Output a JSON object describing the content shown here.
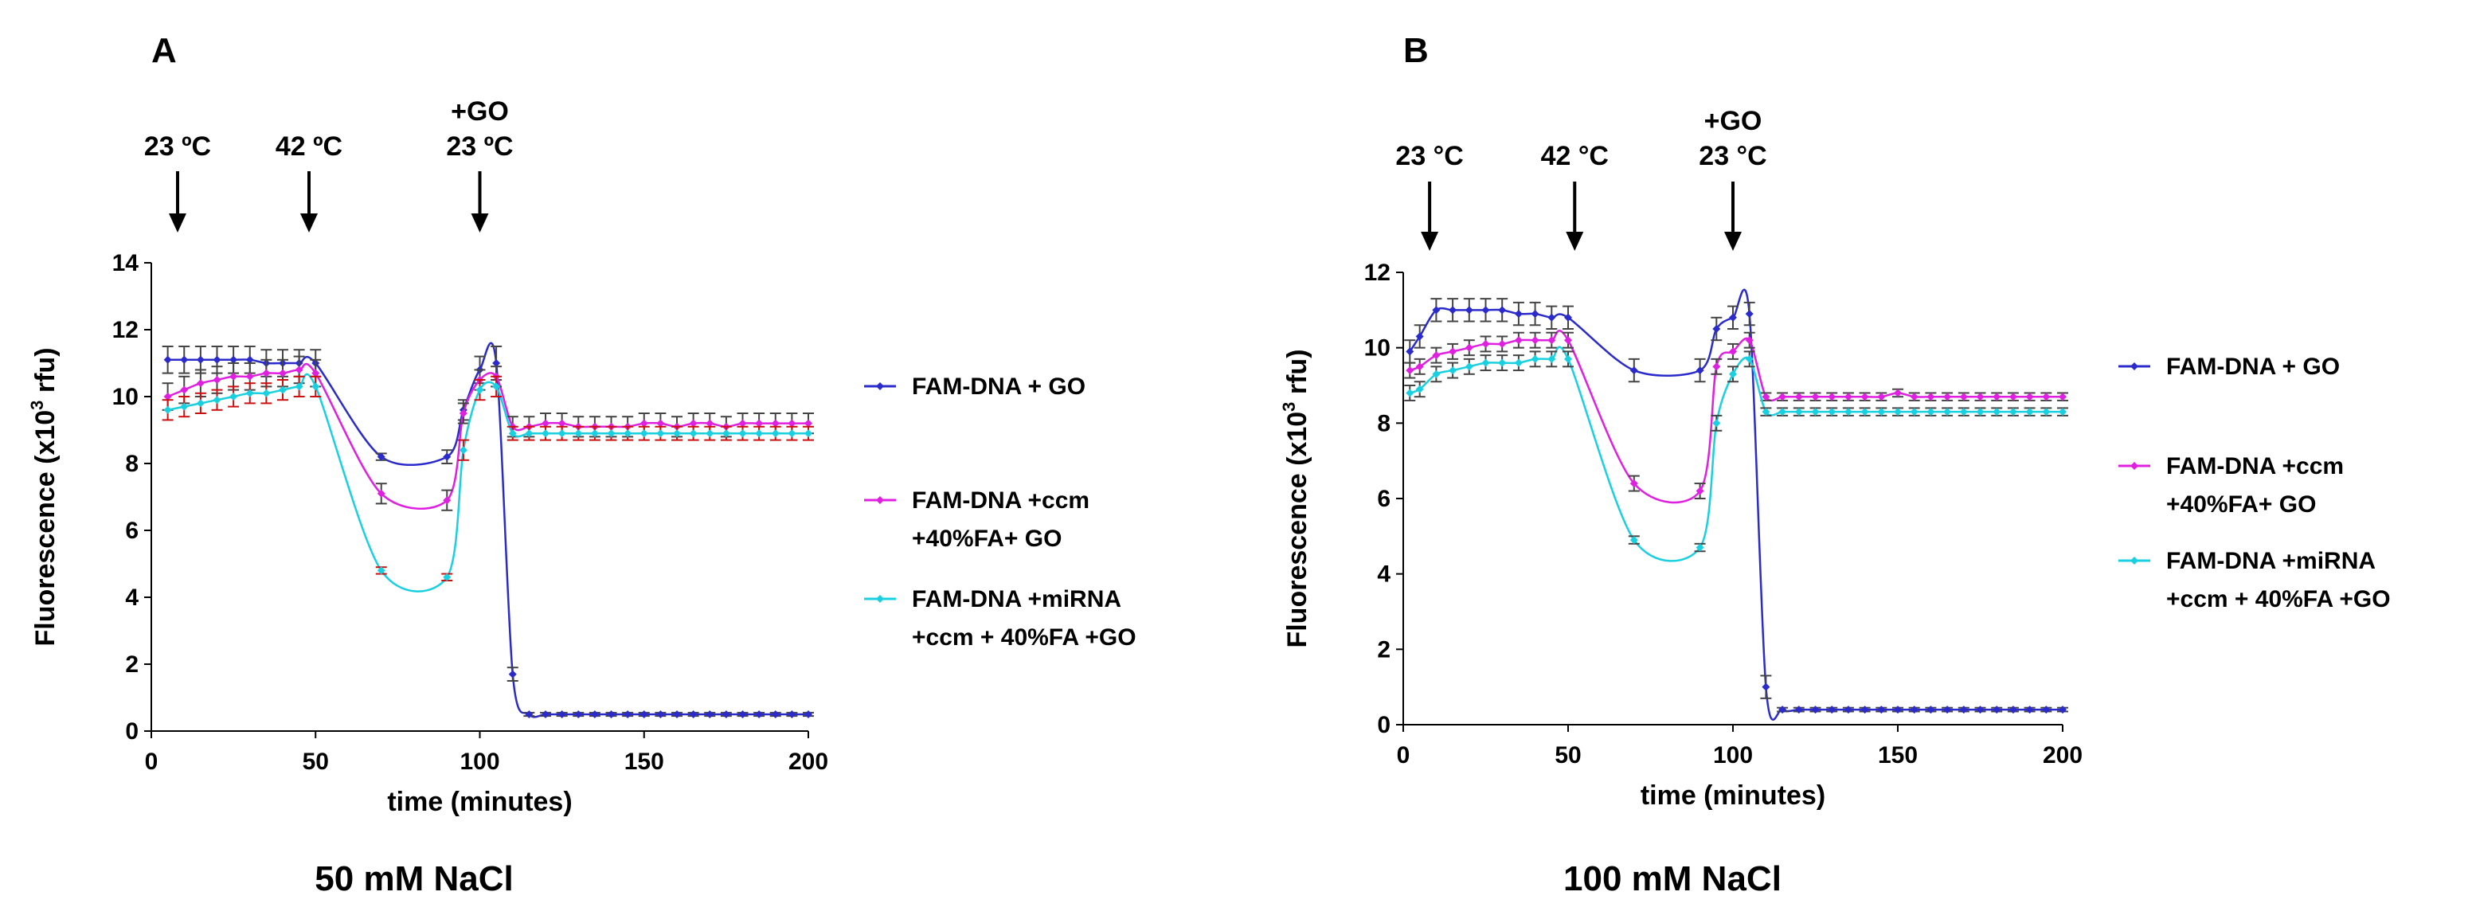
{
  "figure": {
    "panels": [
      {
        "letter": "A",
        "condition": "50 mM NaCl",
        "arrows": [
          {
            "x": 8,
            "lines": [
              "23 ºC"
            ]
          },
          {
            "x": 48,
            "lines": [
              "42 ºC"
            ]
          },
          {
            "x": 100,
            "lines": [
              "+GO",
              "23 ºC"
            ]
          }
        ]
      },
      {
        "letter": "B",
        "condition": "100 mM NaCl",
        "arrows": [
          {
            "x": 8,
            "lines": [
              "23 °C"
            ]
          },
          {
            "x": 52,
            "lines": [
              "42 °C"
            ]
          },
          {
            "x": 100,
            "lines": [
              "+GO",
              "23 °C"
            ]
          }
        ]
      }
    ]
  },
  "chart_data": [
    {
      "type": "line",
      "panel": "A",
      "xlabel": "time (minutes)",
      "ylabel": "Fluorescence (x10",
      "ylabel_sup": "3",
      "ylabel_end": " rfu)",
      "xlim": [
        0,
        200
      ],
      "ylim": [
        0,
        14
      ],
      "xticks": [
        0,
        50,
        100,
        150,
        200
      ],
      "yticks": [
        0,
        2,
        4,
        6,
        8,
        10,
        12,
        14
      ],
      "legend_position": "right",
      "series": [
        {
          "name": "FAM-DNA + GO",
          "legend_lines": [
            "FAM-DNA + GO"
          ],
          "color": "#2b2bcc",
          "error_color": "#444444",
          "x": [
            5,
            10,
            15,
            20,
            25,
            30,
            35,
            40,
            45,
            50,
            70,
            90,
            95,
            100,
            105,
            110,
            115,
            120,
            125,
            130,
            135,
            140,
            145,
            150,
            155,
            160,
            165,
            170,
            175,
            180,
            185,
            190,
            195,
            200
          ],
          "y": [
            11.1,
            11.1,
            11.1,
            11.1,
            11.1,
            11.1,
            11.0,
            11.0,
            11.0,
            11.0,
            8.2,
            8.2,
            9.6,
            10.8,
            11.0,
            1.7,
            0.5,
            0.5,
            0.5,
            0.5,
            0.5,
            0.5,
            0.5,
            0.5,
            0.5,
            0.5,
            0.5,
            0.5,
            0.5,
            0.5,
            0.5,
            0.5,
            0.5,
            0.5
          ],
          "err": [
            0.4,
            0.4,
            0.4,
            0.4,
            0.4,
            0.4,
            0.4,
            0.4,
            0.4,
            0.4,
            0.1,
            0.2,
            0.3,
            0.4,
            0.5,
            0.2,
            0.05,
            0.05,
            0.05,
            0.05,
            0.05,
            0.05,
            0.05,
            0.05,
            0.05,
            0.05,
            0.05,
            0.05,
            0.05,
            0.05,
            0.05,
            0.05,
            0.05,
            0.05
          ]
        },
        {
          "name": "FAM-DNA +ccm +40%FA+ GO",
          "legend_lines": [
            "FAM-DNA +ccm",
            "+40%FA+ GO"
          ],
          "color": "#e020e0",
          "error_color": "#444444",
          "x": [
            5,
            10,
            15,
            20,
            25,
            30,
            35,
            40,
            45,
            50,
            70,
            90,
            95,
            100,
            105,
            110,
            115,
            120,
            125,
            130,
            135,
            140,
            145,
            150,
            155,
            160,
            165,
            170,
            175,
            180,
            185,
            190,
            195,
            200
          ],
          "y": [
            10.0,
            10.2,
            10.4,
            10.5,
            10.6,
            10.6,
            10.7,
            10.7,
            10.8,
            10.7,
            7.1,
            6.9,
            9.5,
            10.5,
            10.6,
            9.1,
            9.1,
            9.2,
            9.2,
            9.1,
            9.1,
            9.1,
            9.1,
            9.2,
            9.2,
            9.1,
            9.2,
            9.2,
            9.1,
            9.2,
            9.2,
            9.2,
            9.2,
            9.2
          ],
          "err": [
            0.4,
            0.4,
            0.4,
            0.4,
            0.4,
            0.4,
            0.4,
            0.4,
            0.4,
            0.4,
            0.3,
            0.3,
            0.3,
            0.3,
            0.3,
            0.3,
            0.3,
            0.3,
            0.3,
            0.3,
            0.3,
            0.3,
            0.3,
            0.3,
            0.3,
            0.3,
            0.3,
            0.3,
            0.3,
            0.3,
            0.3,
            0.3,
            0.3,
            0.3
          ]
        },
        {
          "name": "FAM-DNA +miRNA +ccm + 40%FA +GO",
          "legend_lines": [
            "FAM-DNA +miRNA",
            "+ccm + 40%FA +GO"
          ],
          "color": "#18d0e0",
          "error_color": "#cc1010",
          "x": [
            5,
            10,
            15,
            20,
            25,
            30,
            35,
            40,
            45,
            50,
            70,
            90,
            95,
            100,
            105,
            110,
            115,
            120,
            125,
            130,
            135,
            140,
            145,
            150,
            155,
            160,
            165,
            170,
            175,
            180,
            185,
            190,
            195,
            200
          ],
          "y": [
            9.6,
            9.7,
            9.8,
            9.9,
            10.0,
            10.1,
            10.1,
            10.2,
            10.3,
            10.3,
            4.8,
            4.6,
            8.4,
            10.2,
            10.3,
            8.9,
            8.9,
            8.9,
            8.9,
            8.9,
            8.9,
            8.9,
            8.9,
            8.9,
            8.9,
            8.9,
            8.9,
            8.9,
            8.9,
            8.9,
            8.9,
            8.9,
            8.9,
            8.9
          ],
          "err": [
            0.3,
            0.3,
            0.3,
            0.3,
            0.3,
            0.3,
            0.3,
            0.3,
            0.3,
            0.3,
            0.1,
            0.1,
            0.3,
            0.3,
            0.3,
            0.2,
            0.2,
            0.2,
            0.2,
            0.2,
            0.2,
            0.2,
            0.2,
            0.2,
            0.2,
            0.2,
            0.2,
            0.2,
            0.2,
            0.2,
            0.2,
            0.2,
            0.2,
            0.2
          ]
        }
      ]
    },
    {
      "type": "line",
      "panel": "B",
      "xlabel": "time (minutes)",
      "ylabel": "Fluorescence (x10",
      "ylabel_sup": "3",
      "ylabel_end": " rfu)",
      "xlim": [
        0,
        200
      ],
      "ylim": [
        0,
        12
      ],
      "xticks": [
        0,
        50,
        100,
        150,
        200
      ],
      "yticks": [
        0,
        2,
        4,
        6,
        8,
        10,
        12
      ],
      "legend_position": "right",
      "series": [
        {
          "name": "FAM-DNA + GO",
          "legend_lines": [
            "FAM-DNA + GO"
          ],
          "color": "#2b2bcc",
          "error_color": "#444444",
          "x": [
            2,
            5,
            10,
            15,
            20,
            25,
            30,
            35,
            40,
            45,
            50,
            70,
            90,
            95,
            100,
            105,
            110,
            115,
            120,
            125,
            130,
            135,
            140,
            145,
            150,
            155,
            160,
            165,
            170,
            175,
            180,
            185,
            190,
            195,
            200
          ],
          "y": [
            9.9,
            10.3,
            11.0,
            11.0,
            11.0,
            11.0,
            11.0,
            10.9,
            10.9,
            10.8,
            10.8,
            9.4,
            9.4,
            10.5,
            10.8,
            10.9,
            1.0,
            0.4,
            0.4,
            0.4,
            0.4,
            0.4,
            0.4,
            0.4,
            0.4,
            0.4,
            0.4,
            0.4,
            0.4,
            0.4,
            0.4,
            0.4,
            0.4,
            0.4,
            0.4
          ],
          "err": [
            0.3,
            0.3,
            0.3,
            0.3,
            0.3,
            0.3,
            0.3,
            0.3,
            0.3,
            0.3,
            0.3,
            0.3,
            0.3,
            0.3,
            0.3,
            0.3,
            0.3,
            0.05,
            0.05,
            0.05,
            0.05,
            0.05,
            0.05,
            0.05,
            0.05,
            0.05,
            0.05,
            0.05,
            0.05,
            0.05,
            0.05,
            0.05,
            0.05,
            0.05,
            0.05
          ]
        },
        {
          "name": "FAM-DNA +ccm +40%FA+ GO",
          "legend_lines": [
            "FAM-DNA +ccm",
            "+40%FA+ GO"
          ],
          "color": "#e020e0",
          "error_color": "#444444",
          "x": [
            2,
            5,
            10,
            15,
            20,
            25,
            30,
            35,
            40,
            45,
            50,
            70,
            90,
            95,
            100,
            105,
            110,
            115,
            120,
            125,
            130,
            135,
            140,
            145,
            150,
            155,
            160,
            165,
            170,
            175,
            180,
            185,
            190,
            195,
            200
          ],
          "y": [
            9.4,
            9.5,
            9.8,
            9.9,
            10.0,
            10.1,
            10.1,
            10.2,
            10.2,
            10.2,
            10.2,
            6.4,
            6.2,
            9.5,
            9.9,
            10.2,
            8.7,
            8.7,
            8.7,
            8.7,
            8.7,
            8.7,
            8.7,
            8.7,
            8.8,
            8.7,
            8.7,
            8.7,
            8.7,
            8.7,
            8.7,
            8.7,
            8.7,
            8.7,
            8.7
          ],
          "err": [
            0.2,
            0.2,
            0.2,
            0.2,
            0.2,
            0.2,
            0.2,
            0.2,
            0.2,
            0.2,
            0.2,
            0.2,
            0.2,
            0.2,
            0.2,
            0.2,
            0.1,
            0.1,
            0.1,
            0.1,
            0.1,
            0.1,
            0.1,
            0.1,
            0.1,
            0.1,
            0.1,
            0.1,
            0.1,
            0.1,
            0.1,
            0.1,
            0.1,
            0.1,
            0.1
          ]
        },
        {
          "name": "FAM-DNA +miRNA +ccm + 40%FA +GO",
          "legend_lines": [
            "FAM-DNA +miRNA",
            "+ccm + 40%FA +GO"
          ],
          "color": "#18d0e0",
          "error_color": "#444444",
          "x": [
            2,
            5,
            10,
            15,
            20,
            25,
            30,
            35,
            40,
            45,
            50,
            70,
            90,
            95,
            100,
            105,
            110,
            115,
            120,
            125,
            130,
            135,
            140,
            145,
            150,
            155,
            160,
            165,
            170,
            175,
            180,
            185,
            190,
            195,
            200
          ],
          "y": [
            8.8,
            8.9,
            9.3,
            9.4,
            9.5,
            9.6,
            9.6,
            9.6,
            9.7,
            9.7,
            9.7,
            4.9,
            4.7,
            8.0,
            9.3,
            9.7,
            8.3,
            8.3,
            8.3,
            8.3,
            8.3,
            8.3,
            8.3,
            8.3,
            8.3,
            8.3,
            8.3,
            8.3,
            8.3,
            8.3,
            8.3,
            8.3,
            8.3,
            8.3,
            8.3
          ],
          "err": [
            0.2,
            0.2,
            0.2,
            0.2,
            0.2,
            0.2,
            0.2,
            0.2,
            0.2,
            0.2,
            0.2,
            0.1,
            0.1,
            0.2,
            0.2,
            0.2,
            0.1,
            0.1,
            0.1,
            0.1,
            0.1,
            0.1,
            0.1,
            0.1,
            0.1,
            0.1,
            0.1,
            0.1,
            0.1,
            0.1,
            0.1,
            0.1,
            0.1,
            0.1,
            0.1
          ]
        }
      ]
    }
  ]
}
